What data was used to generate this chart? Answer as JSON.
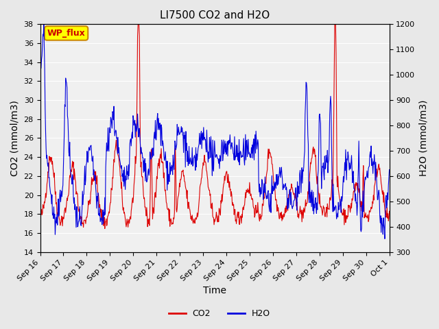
{
  "title": "LI7500 CO2 and H2O",
  "xlabel": "Time",
  "ylabel_left": "CO2 (mmol/m3)",
  "ylabel_right": "H2O (mmol/m3)",
  "co2_ylim": [
    14,
    38
  ],
  "h2o_ylim": [
    300,
    1200
  ],
  "co2_color": "#dd0000",
  "h2o_color": "#0000dd",
  "annotation_text": "WP_flux",
  "annotation_bg": "#ffff00",
  "annotation_border": "#cc8800",
  "background_color": "#e8e8e8",
  "plot_bg": "#f0f0f0",
  "grid_color": "#ffffff",
  "xtick_labels": [
    "Sep 16",
    "Sep 17",
    "Sep 18",
    "Sep 19",
    "Sep 20",
    "Sep 21",
    "Sep 22",
    "Sep 23",
    "Sep 24",
    "Sep 25",
    "Sep 26",
    "Sep 27",
    "Sep 28",
    "Sep 29",
    "Sep 30",
    "Oct 1"
  ],
  "title_fontsize": 11,
  "axis_fontsize": 10,
  "tick_fontsize": 8,
  "legend_fontsize": 9
}
